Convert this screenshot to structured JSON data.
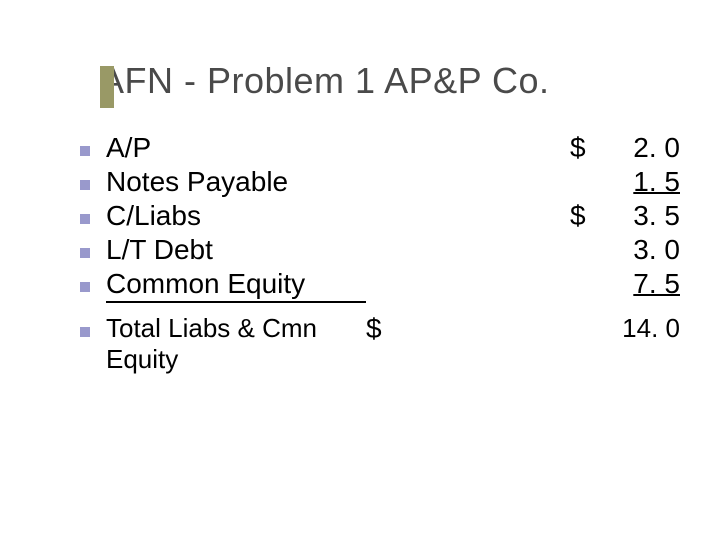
{
  "title": "AFN - Problem 1 AP&P Co.",
  "colors": {
    "title_accent": "#999966",
    "bullet": "#9999cc",
    "title_text": "#4a4a4a",
    "text": "#000000",
    "background": "#ffffff"
  },
  "typography": {
    "title_fontsize": 36,
    "item_fontsize": 28,
    "total_fontsize": 26,
    "font_family": "Verdana"
  },
  "items": [
    {
      "label": "A/P",
      "currency": "$",
      "value": "2. 0",
      "underline_value": false,
      "underline_label": false
    },
    {
      "label": "Notes Payable",
      "currency": "",
      "value": "1. 5",
      "underline_value": true,
      "underline_label": false
    },
    {
      "label": "C/Liabs",
      "currency": "$",
      "value": "3. 5",
      "underline_value": false,
      "underline_label": false
    },
    {
      "label": "L/T Debt",
      "currency": "",
      "value": "3. 0",
      "underline_value": false,
      "underline_label": false
    },
    {
      "label": "Common Equity",
      "currency": "",
      "value": "7. 5",
      "underline_value": true,
      "underline_label": true
    }
  ],
  "total": {
    "label": "Total Liabs & Cmn Equity",
    "currency": "$",
    "value": "14. 0"
  }
}
